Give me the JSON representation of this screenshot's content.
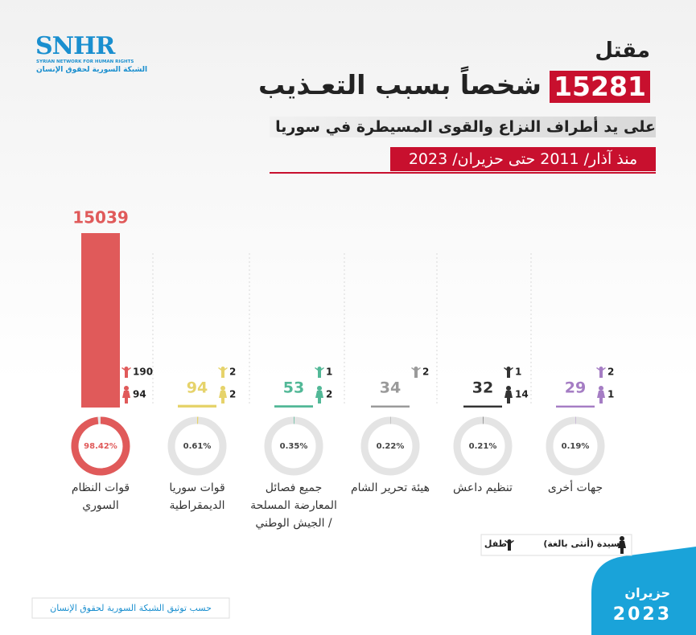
{
  "header": {
    "logo": "SNHR",
    "logo_subtitle": "SYRIAN NETWORK FOR HUMAN RIGHTS",
    "logo_arabic": "الشبكة السورية لحقوق الإنسان",
    "line1": "مقتل",
    "total": 15281,
    "line2": "شخصاً بسبب التعـذيب",
    "line3": "على يد أطراف النزاع والقوى المسيطرة في سوريا",
    "line4": "منذ آذار/ 2011 حتى حزيران/ 2023"
  },
  "chart_data": {
    "type": "bar",
    "categories": [
      "قوات النظام السوري",
      "قوات سوريا الديمقراطية",
      "جميع فصائل المعارضة المسلحة / الجيش الوطني",
      "هيئة تحرير الشام",
      "تنظيم داعش",
      "جهات أخرى"
    ],
    "colors": [
      "#e05a5a",
      "#e6d36b",
      "#52b897",
      "#9a9a9a",
      "#333333",
      "#a57dc4"
    ],
    "values": [
      15039,
      94,
      53,
      34,
      32,
      29
    ],
    "series": [
      {
        "name": "طفل",
        "values": [
          190,
          2,
          1,
          2,
          1,
          2
        ]
      },
      {
        "name": "سيدة (أنثى بالغة)",
        "values": [
          94,
          2,
          2,
          null,
          14,
          1
        ]
      }
    ],
    "percentages": {
      "values": [
        98.42,
        0.61,
        0.35,
        0.22,
        0.21,
        0.19
      ],
      "value_labels": [
        "98.42%",
        "0.61%",
        "0.35%",
        "0.22%",
        "0.21%",
        "0.19%"
      ]
    }
  },
  "footer": {
    "source": "حسب توثيق الشبكة السورية لحقوق الإنسان",
    "month": "حزيران",
    "year": "2023"
  }
}
